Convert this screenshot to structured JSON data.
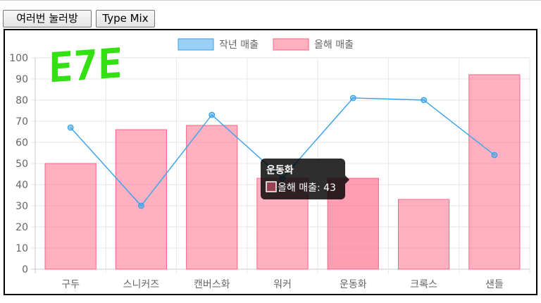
{
  "buttons": {
    "random_click": "여러번 눌러방",
    "type_mix": "Type Mix"
  },
  "logo": {
    "text": "E7E",
    "color": "#33e011"
  },
  "chart_data": {
    "type": "bar",
    "categories": [
      "구두",
      "스니커즈",
      "캔버스화",
      "워커",
      "운동화",
      "크록스",
      "샌들"
    ],
    "series": [
      {
        "name": "작년 매출",
        "type": "line",
        "values": [
          67,
          30,
          73,
          43,
          81,
          80,
          54
        ],
        "color": "#36a2eb"
      },
      {
        "name": "올해 매출",
        "type": "bar",
        "values": [
          50,
          66,
          68,
          43,
          43,
          33,
          92
        ],
        "color": "#ff6384"
      }
    ],
    "ylim": [
      0,
      100
    ],
    "yticks": [
      0,
      10,
      20,
      30,
      40,
      50,
      60,
      70,
      80,
      90,
      100
    ],
    "grid": true,
    "legend_position": "top",
    "tooltip": {
      "title": "운동화",
      "label": "올해 매출: 43",
      "category_index": 4
    }
  }
}
